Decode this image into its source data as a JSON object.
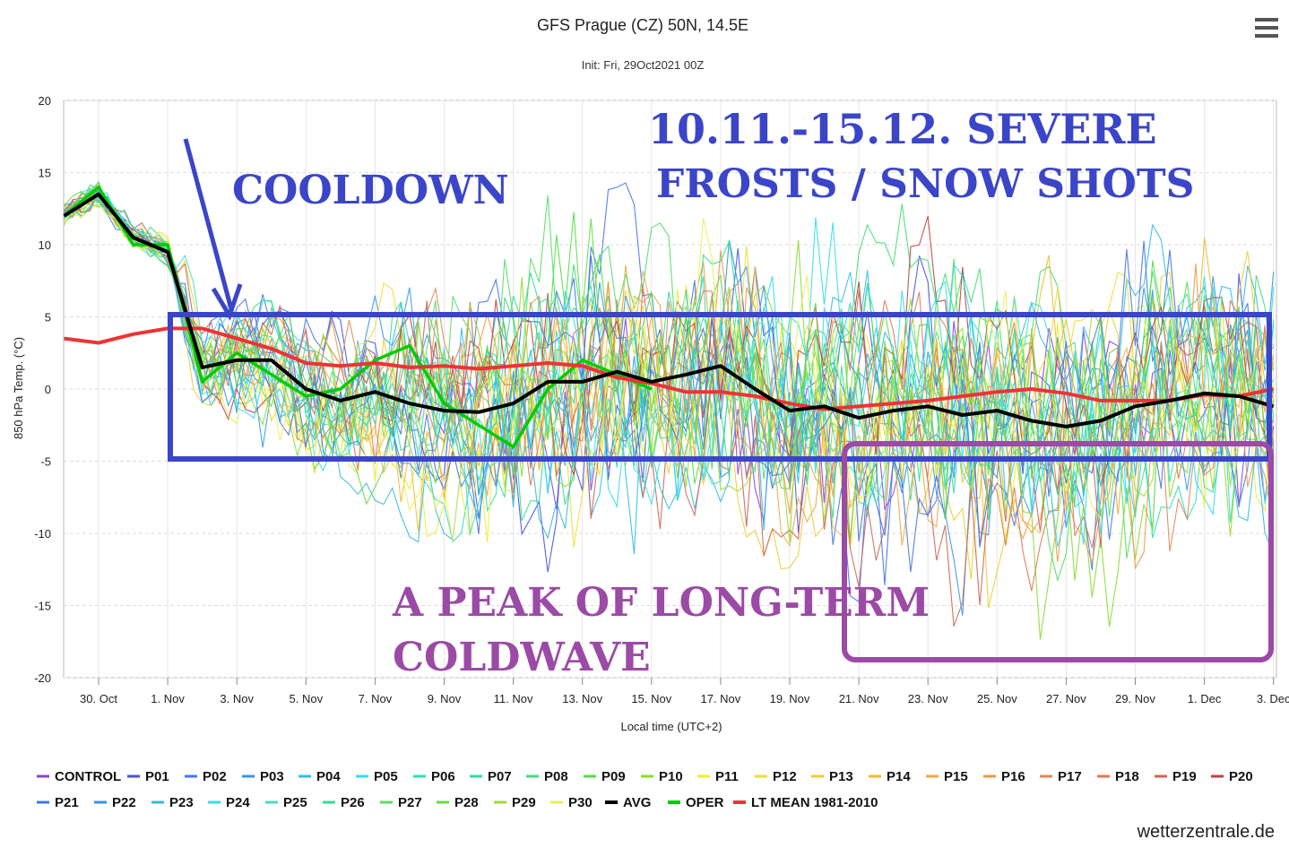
{
  "header": {
    "title": "GFS Prague (CZ) 50N, 14.5E",
    "subtitle": "Init: Fri, 29Oct2021 00Z"
  },
  "menu": {
    "icon": "hamburger-menu-icon"
  },
  "credit": "wetterzentrale.de",
  "annotations": {
    "cooldown": "COOLDOWN",
    "severe_line1": "10.11.-15.12. SEVERE",
    "severe_line2": "FROSTS / SNOW SHOTS",
    "peak_line1": "A PEAK OF LONG-TERM",
    "peak_line2": "COLDWAVE"
  },
  "colors": {
    "annotation_blue": "#3b45c8",
    "annotation_purple": "#9b4aa6",
    "avg": "#000000",
    "oper": "#00cc00",
    "lt_mean": "#ee3333"
  },
  "chart_data": {
    "type": "line",
    "title": "GFS Prague (CZ) 50N, 14.5E",
    "subtitle": "Init: Fri, 29Oct2021 00Z",
    "xlabel": "Local time (UTC+2)",
    "ylabel": "850 hPa Temp. (°C)",
    "ylim": [
      -20,
      20
    ],
    "yticks": [
      20,
      15,
      10,
      5,
      0,
      -5,
      -10,
      -15,
      -20
    ],
    "xlim_days": [
      0,
      35
    ],
    "xticks": [
      "30. Oct",
      "1. Nov",
      "3. Nov",
      "5. Nov",
      "7. Nov",
      "9. Nov",
      "11. Nov",
      "13. Nov",
      "15. Nov",
      "17. Nov",
      "19. Nov",
      "21. Nov",
      "23. Nov",
      "25. Nov",
      "27. Nov",
      "29. Nov",
      "1. Dec",
      "3. Dec"
    ],
    "grid": true,
    "legend_position": "bottom",
    "avg": {
      "name": "AVG",
      "x": [
        "29 Oct",
        "30 Oct",
        "31 Oct",
        "1 Nov",
        "2 Nov",
        "3 Nov",
        "4 Nov",
        "5 Nov",
        "6 Nov",
        "7 Nov",
        "8 Nov",
        "9 Nov",
        "10 Nov",
        "11 Nov",
        "12 Nov",
        "13 Nov",
        "14 Nov",
        "15 Nov",
        "16 Nov",
        "17 Nov",
        "18 Nov",
        "19 Nov",
        "20 Nov",
        "21 Nov",
        "22 Nov",
        "23 Nov",
        "24 Nov",
        "25 Nov",
        "26 Nov",
        "27 Nov",
        "28 Nov",
        "29 Nov",
        "30 Nov",
        "1 Dec",
        "2 Dec",
        "3 Dec"
      ],
      "values": [
        12,
        13.5,
        10.5,
        9.5,
        1.5,
        2,
        2,
        0,
        -0.8,
        -0.2,
        -1,
        -1.5,
        -1.6,
        -1,
        0.5,
        0.5,
        1.2,
        0.5,
        1,
        1.6,
        0,
        -1.5,
        -1.2,
        -2,
        -1.5,
        -1.2,
        -1.8,
        -1.5,
        -2.2,
        -2.6,
        -2.2,
        -1.2,
        -0.8,
        -0.3,
        -0.5,
        -1.2
      ]
    },
    "oper": {
      "name": "OPER",
      "x": [
        "29 Oct",
        "30 Oct",
        "31 Oct",
        "1 Nov",
        "2 Nov",
        "3 Nov",
        "4 Nov",
        "5 Nov",
        "6 Nov",
        "7 Nov",
        "8 Nov",
        "9 Nov",
        "10 Nov",
        "11 Nov",
        "12 Nov",
        "13 Nov",
        "14 Nov",
        "15 Nov"
      ],
      "values": [
        12,
        14,
        10,
        10,
        0.5,
        2.5,
        1,
        -0.5,
        0,
        2,
        3,
        -1,
        -2.5,
        -4,
        0,
        2,
        1,
        0
      ]
    },
    "lt_mean": {
      "name": "LT MEAN 1981-2010",
      "x": [
        "29 Oct",
        "30 Oct",
        "31 Oct",
        "1 Nov",
        "2 Nov",
        "3 Nov",
        "4 Nov",
        "5 Nov",
        "6 Nov",
        "7 Nov",
        "8 Nov",
        "9 Nov",
        "10 Nov",
        "11 Nov",
        "12 Nov",
        "13 Nov",
        "14 Nov",
        "15 Nov",
        "16 Nov",
        "17 Nov",
        "18 Nov",
        "19 Nov",
        "20 Nov",
        "21 Nov",
        "22 Nov",
        "23 Nov",
        "24 Nov",
        "25 Nov",
        "26 Nov",
        "27 Nov",
        "28 Nov",
        "29 Nov",
        "30 Nov",
        "1 Dec",
        "2 Dec",
        "3 Dec"
      ],
      "values": [
        3.5,
        3.2,
        3.8,
        4.2,
        4.2,
        3.5,
        2.8,
        1.8,
        1.6,
        1.8,
        1.5,
        1.6,
        1.4,
        1.6,
        1.8,
        1.6,
        0.8,
        0.4,
        -0.2,
        -0.2,
        -0.5,
        -1,
        -1.4,
        -1.2,
        -1,
        -0.8,
        -0.5,
        -0.2,
        0,
        -0.3,
        -0.8,
        -0.8,
        -0.8,
        -0.4,
        -0.5,
        0
      ]
    },
    "legend": [
      {
        "name": "CONTROL",
        "color": "#8844dd"
      },
      {
        "name": "P01",
        "color": "#4455dd"
      },
      {
        "name": "P02",
        "color": "#4477ee"
      },
      {
        "name": "P03",
        "color": "#3399ee"
      },
      {
        "name": "P04",
        "color": "#33bbee"
      },
      {
        "name": "P05",
        "color": "#33ddee"
      },
      {
        "name": "P06",
        "color": "#33ddbb"
      },
      {
        "name": "P07",
        "color": "#33dd99"
      },
      {
        "name": "P08",
        "color": "#44dd77"
      },
      {
        "name": "P09",
        "color": "#55dd44"
      },
      {
        "name": "P10",
        "color": "#88dd33"
      },
      {
        "name": "P11",
        "color": "#eeee33"
      },
      {
        "name": "P12",
        "color": "#eedd33"
      },
      {
        "name": "P13",
        "color": "#eecc33"
      },
      {
        "name": "P14",
        "color": "#eebb33"
      },
      {
        "name": "P15",
        "color": "#eeaa44"
      },
      {
        "name": "P16",
        "color": "#ee9944"
      },
      {
        "name": "P17",
        "color": "#dd8855"
      },
      {
        "name": "P18",
        "color": "#dd7755"
      },
      {
        "name": "P19",
        "color": "#cc6655"
      },
      {
        "name": "P20",
        "color": "#bb4444"
      },
      {
        "name": "P21",
        "color": "#4477dd"
      },
      {
        "name": "P22",
        "color": "#3399dd"
      },
      {
        "name": "P23",
        "color": "#33bbdd"
      },
      {
        "name": "P24",
        "color": "#33ddee"
      },
      {
        "name": "P25",
        "color": "#44ddcc"
      },
      {
        "name": "P26",
        "color": "#33dd99"
      },
      {
        "name": "P27",
        "color": "#55dd66"
      },
      {
        "name": "P28",
        "color": "#66dd44"
      },
      {
        "name": "P29",
        "color": "#99dd33"
      },
      {
        "name": "P30",
        "color": "#eeee55"
      },
      {
        "name": "AVG",
        "color": "#000000"
      },
      {
        "name": "OPER",
        "color": "#00cc00"
      },
      {
        "name": "LT MEAN 1981-2010",
        "color": "#ee3333"
      }
    ]
  }
}
